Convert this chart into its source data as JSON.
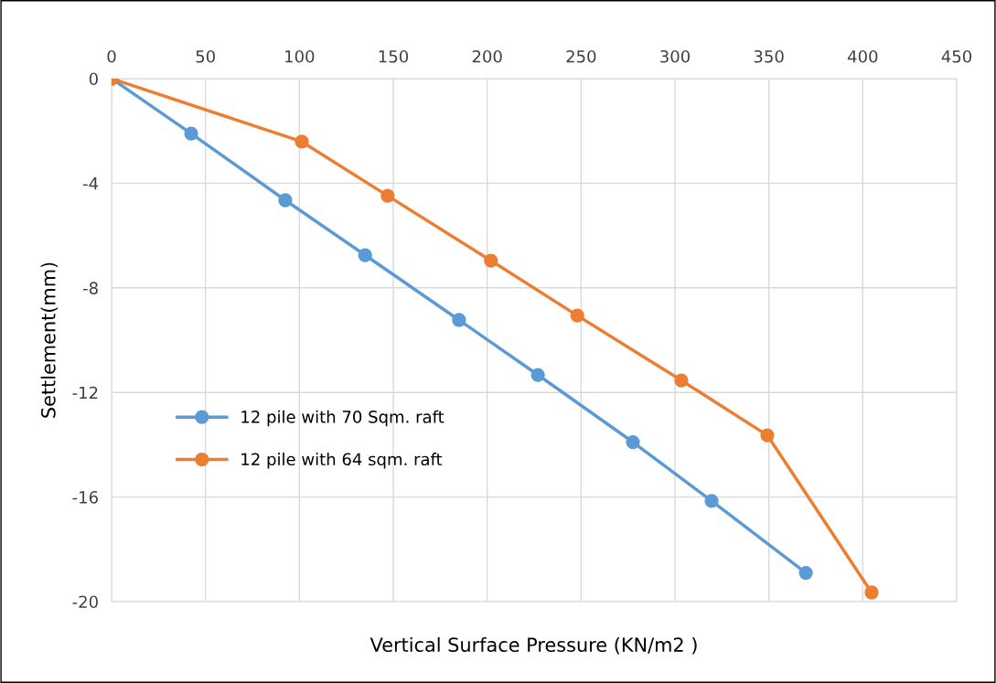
{
  "chart_data": {
    "type": "line",
    "xlabel": "Vertical Surface Pressure (KN/m2 )",
    "ylabel": "Settlement(mm)",
    "xlim": [
      0,
      450
    ],
    "xticks": [
      0,
      50,
      100,
      150,
      200,
      250,
      300,
      350,
      400,
      450
    ],
    "ylim": [
      -20,
      0
    ],
    "yticks": [
      -20,
      -16,
      -12,
      -8,
      -4,
      0
    ],
    "grid": true,
    "legend": "left",
    "marker": "circle",
    "line_style": "solid",
    "series": [
      {
        "name": "12 pile with 70 Sqm. raft",
        "color": "#5b9bd5",
        "x": [
          0,
          42.4,
          92.5,
          135,
          185,
          227,
          277.6,
          319.5,
          369.7
        ],
        "values": [
          0,
          -2.1,
          -4.65,
          -6.75,
          -9.23,
          -11.33,
          -13.9,
          -16.15,
          -18.9
        ]
      },
      {
        "name": "12 pile with 64 sqm. raft",
        "color": "#ed7d31",
        "x": [
          0,
          101.3,
          147,
          202,
          248,
          303.4,
          349.2,
          404.7
        ],
        "values": [
          0,
          -2.41,
          -4.48,
          -6.96,
          -9.06,
          -11.54,
          -13.64,
          -19.65
        ]
      }
    ]
  }
}
